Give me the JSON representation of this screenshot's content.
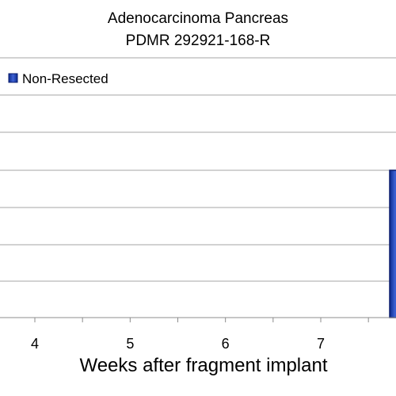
{
  "chart_data": {
    "type": "bar",
    "title": "Adenocarcinoma Pancreas",
    "subtitle": "PDMR 292921-168-R",
    "xlabel": "Weeks after fragment implant",
    "ylabel": "",
    "x_tick_labels": [
      "4",
      "5",
      "6",
      "7"
    ],
    "xlim": [
      3.6,
      7.75
    ],
    "grid": true,
    "legend": {
      "placement": "top-left",
      "entries": [
        "Non-Resected"
      ]
    },
    "series": [
      {
        "name": "Non-Resected",
        "color": "#1f3fa8",
        "edge_color": "#0a1c6e",
        "points": [
          {
            "x": 7.8,
            "level": 0.5
          }
        ]
      }
    ]
  }
}
